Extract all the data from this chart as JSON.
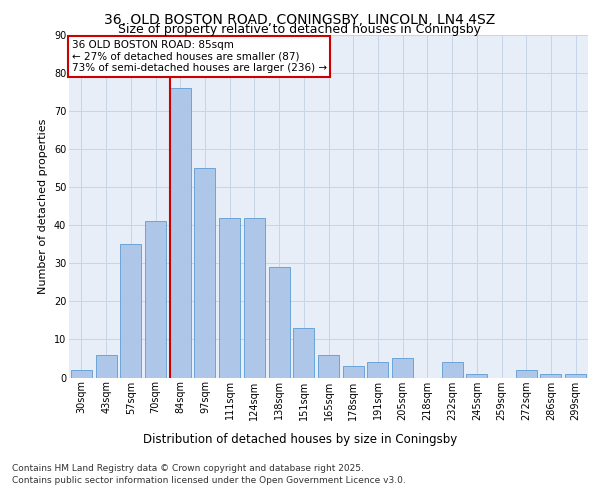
{
  "title1": "36, OLD BOSTON ROAD, CONINGSBY, LINCOLN, LN4 4SZ",
  "title2": "Size of property relative to detached houses in Coningsby",
  "xlabel": "Distribution of detached houses by size in Coningsby",
  "ylabel": "Number of detached properties",
  "categories": [
    "30sqm",
    "43sqm",
    "57sqm",
    "70sqm",
    "84sqm",
    "97sqm",
    "111sqm",
    "124sqm",
    "138sqm",
    "151sqm",
    "165sqm",
    "178sqm",
    "191sqm",
    "205sqm",
    "218sqm",
    "232sqm",
    "245sqm",
    "259sqm",
    "272sqm",
    "286sqm",
    "299sqm"
  ],
  "values": [
    2,
    6,
    35,
    41,
    76,
    55,
    42,
    42,
    29,
    13,
    6,
    3,
    4,
    5,
    0,
    4,
    1,
    0,
    2,
    1,
    1
  ],
  "bar_color": "#aec6e8",
  "bar_edge_color": "#5b9bd5",
  "vline_index": 4,
  "vline_color": "#cc0000",
  "annotation_title": "36 OLD BOSTON ROAD: 85sqm",
  "annotation_line1": "← 27% of detached houses are smaller (87)",
  "annotation_line2": "73% of semi-detached houses are larger (236) →",
  "annotation_box_color": "#cc0000",
  "annotation_bg": "#ffffff",
  "ylim": [
    0,
    90
  ],
  "yticks": [
    0,
    10,
    20,
    30,
    40,
    50,
    60,
    70,
    80,
    90
  ],
  "footer1": "Contains HM Land Registry data © Crown copyright and database right 2025.",
  "footer2": "Contains public sector information licensed under the Open Government Licence v3.0.",
  "bg_color": "#e8eef8",
  "grid_color": "#c8d4e8",
  "title1_fontsize": 10,
  "title2_fontsize": 9,
  "xlabel_fontsize": 8.5,
  "ylabel_fontsize": 8,
  "tick_fontsize": 7,
  "footer_fontsize": 6.5,
  "ann_fontsize": 7.5
}
